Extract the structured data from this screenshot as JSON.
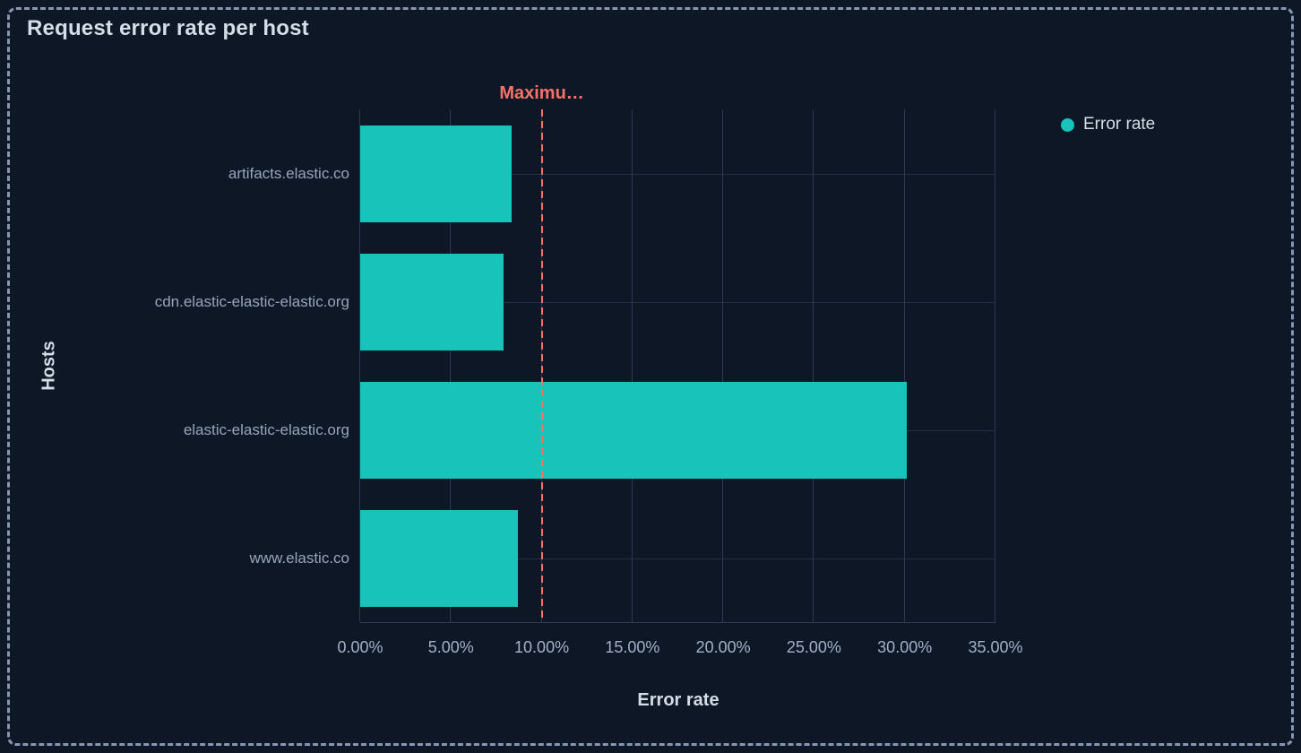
{
  "panel": {
    "title": "Request error rate per host",
    "background_color": "#0e1726",
    "border_color": "#8796b3"
  },
  "legend": {
    "position": "right",
    "items": [
      {
        "label": "Error rate",
        "color": "#18c4ba"
      }
    ]
  },
  "chart_data": {
    "type": "bar",
    "orientation": "horizontal",
    "title": "Request error rate per host",
    "xlabel": "Error rate",
    "ylabel": "Hosts",
    "categories": [
      "artifacts.elastic.co",
      "cdn.elastic-elastic-elastic.org",
      "elastic-elastic-elastic.org",
      "www.elastic.co"
    ],
    "series": [
      {
        "name": "Error rate",
        "color": "#18c4ba",
        "values": [
          8.35,
          7.9,
          30.1,
          8.7
        ]
      }
    ],
    "value_unit": "%",
    "xlim": [
      0,
      35
    ],
    "x_tick_values": [
      0,
      5,
      10,
      15,
      20,
      25,
      30,
      35
    ],
    "x_tick_labels": [
      "0.00%",
      "5.00%",
      "10.00%",
      "15.00%",
      "20.00%",
      "25.00%",
      "30.00%",
      "35.00%"
    ],
    "grid": true,
    "annotation": {
      "label": "Maximu…",
      "value": 10,
      "color": "#f6726a",
      "style": "dashed"
    }
  }
}
